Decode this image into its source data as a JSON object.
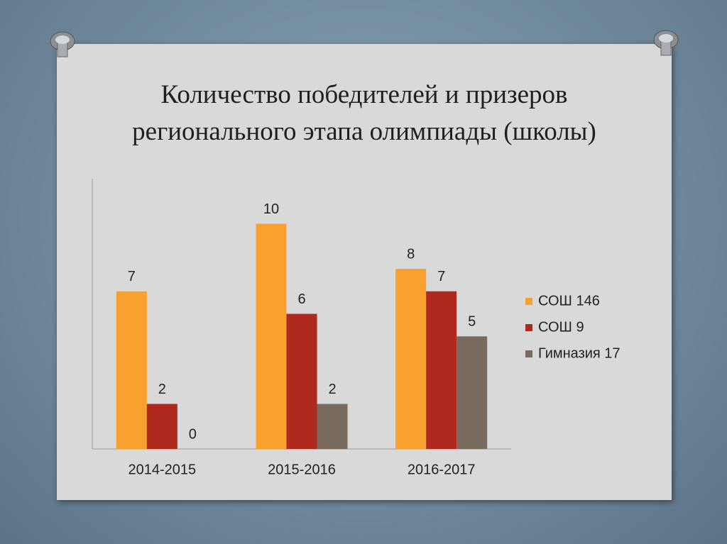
{
  "chart_data": {
    "type": "bar",
    "title": "Количество победителей и призеров\nрегионального этапа олимпиады (школы)",
    "categories": [
      "2014-2015",
      "2015-2016",
      "2016-2017"
    ],
    "series": [
      {
        "name": "СОШ 146",
        "color": "#f9a12e",
        "values": [
          7,
          10,
          8
        ]
      },
      {
        "name": "СОШ 9",
        "color": "#b0291f",
        "values": [
          2,
          6,
          7
        ]
      },
      {
        "name": "Гимназия 17",
        "color": "#786b5d",
        "values": [
          0,
          2,
          5
        ]
      }
    ],
    "ylim": [
      0,
      12
    ],
    "legend": "right"
  }
}
